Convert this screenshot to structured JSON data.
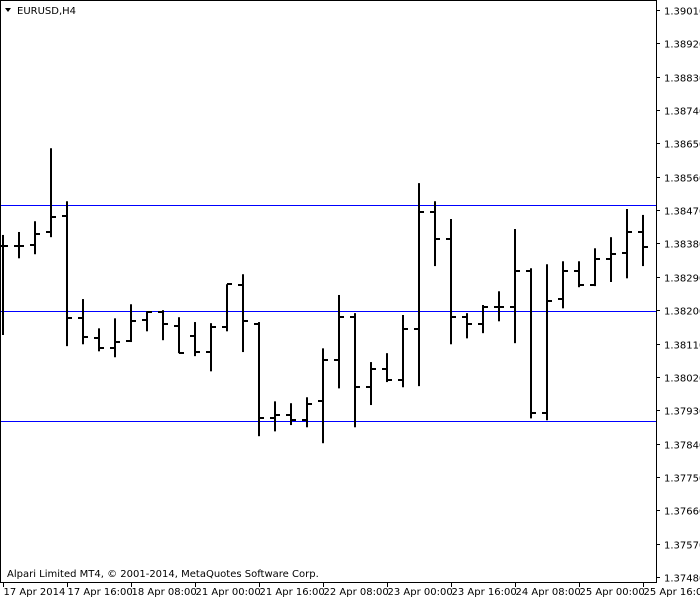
{
  "window": {
    "title": "EURUSD,H4",
    "menu_icon": "triangle-down-icon"
  },
  "footer": {
    "copyright": "Alpari Limited MT4, © 2001-2014, MetaQuotes Software Corp."
  },
  "colors": {
    "background": "#ffffff",
    "bars": "#000000",
    "levels": "#0000ff",
    "axis": "#000000"
  },
  "chart_data": {
    "type": "ohlc",
    "symbol": "EURUSD",
    "timeframe": "H4",
    "ylim": [
      1.3748,
      1.3901
    ],
    "grid": false,
    "y_ticks": [
      "1.39010",
      "1.38920",
      "1.38830",
      "1.38740",
      "1.38650",
      "1.38560",
      "1.38470",
      "1.38380",
      "1.38290",
      "1.38200",
      "1.38110",
      "1.38020",
      "1.37930",
      "1.37840",
      "1.37750",
      "1.37660",
      "1.37570",
      "1.37480"
    ],
    "x_ticks": [
      {
        "bar": 0,
        "label": "17 Apr 2014"
      },
      {
        "bar": 4,
        "label": "17 Apr 16:00"
      },
      {
        "bar": 8,
        "label": "18 Apr 08:00"
      },
      {
        "bar": 12,
        "label": "21 Apr 00:00"
      },
      {
        "bar": 16,
        "label": "21 Apr 16:00"
      },
      {
        "bar": 20,
        "label": "22 Apr 08:00"
      },
      {
        "bar": 24,
        "label": "23 Apr 00:00"
      },
      {
        "bar": 28,
        "label": "23 Apr 16:00"
      },
      {
        "bar": 32,
        "label": "24 Apr 08:00"
      },
      {
        "bar": 36,
        "label": "25 Apr 00:00"
      },
      {
        "bar": 40,
        "label": "25 Apr 16:00"
      }
    ],
    "horizontal_levels": [
      1.38485,
      1.38198,
      1.379
    ],
    "bars": [
      [
        1.38373,
        1.38403,
        1.38133,
        1.38373
      ],
      [
        1.38373,
        1.38411,
        1.3834,
        1.38373
      ],
      [
        1.38376,
        1.3844,
        1.38351,
        1.38405
      ],
      [
        1.38411,
        1.38637,
        1.38397,
        1.38451
      ],
      [
        1.38454,
        1.38494,
        1.38103,
        1.38178
      ],
      [
        1.38178,
        1.3823,
        1.38108,
        1.38127
      ],
      [
        1.38124,
        1.38151,
        1.38089,
        1.38097
      ],
      [
        1.38097,
        1.38178,
        1.38073,
        1.38114
      ],
      [
        1.38116,
        1.38216,
        1.38114,
        1.3817
      ],
      [
        1.38173,
        1.38197,
        1.38143,
        1.38195
      ],
      [
        1.38195,
        1.382,
        1.38119,
        1.38162
      ],
      [
        1.38157,
        1.38181,
        1.38084,
        1.38084
      ],
      [
        1.3813,
        1.38168,
        1.38076,
        1.38087
      ],
      [
        1.38087,
        1.38165,
        1.38035,
        1.38154
      ],
      [
        1.38154,
        1.3827,
        1.38143,
        1.3827
      ],
      [
        1.38268,
        1.38297,
        1.38087,
        1.3817
      ],
      [
        1.38162,
        1.38168,
        1.3786,
        1.37908
      ],
      [
        1.37908,
        1.37954,
        1.37873,
        1.37917
      ],
      [
        1.37917,
        1.37949,
        1.3789,
        1.37903
      ],
      [
        1.37903,
        1.37965,
        1.37884,
        1.37946
      ],
      [
        1.37954,
        1.38097,
        1.37841,
        1.38065
      ],
      [
        1.38065,
        1.38241,
        1.37989,
        1.38181
      ],
      [
        1.38181,
        1.38192,
        1.37884,
        1.37992
      ],
      [
        1.37992,
        1.3806,
        1.37944,
        1.38041
      ],
      [
        1.38041,
        1.38084,
        1.38006,
        1.38011
      ],
      [
        1.38011,
        1.38187,
        1.37992,
        1.38149
      ],
      [
        1.38149,
        1.38543,
        1.37995,
        1.38465
      ],
      [
        1.38465,
        1.38494,
        1.38319,
        1.38392
      ],
      [
        1.38392,
        1.38446,
        1.38108,
        1.38181
      ],
      [
        1.38181,
        1.38192,
        1.38124,
        1.38162
      ],
      [
        1.38162,
        1.38214,
        1.38138,
        1.38208
      ],
      [
        1.38208,
        1.38251,
        1.3817,
        1.38208
      ],
      [
        1.38208,
        1.38419,
        1.38111,
        1.38305
      ],
      [
        1.38305,
        1.38313,
        1.37908,
        1.37922
      ],
      [
        1.37922,
        1.38324,
        1.37903,
        1.38224
      ],
      [
        1.3823,
        1.38332,
        1.38205,
        1.38305
      ],
      [
        1.38305,
        1.38332,
        1.38262,
        1.38268
      ],
      [
        1.38268,
        1.38367,
        1.38265,
        1.38338
      ],
      [
        1.38338,
        1.38397,
        1.38276,
        1.38351
      ],
      [
        1.38354,
        1.38473,
        1.38286,
        1.38411
      ],
      [
        1.38411,
        1.38457,
        1.38319,
        1.3837
      ]
    ]
  }
}
